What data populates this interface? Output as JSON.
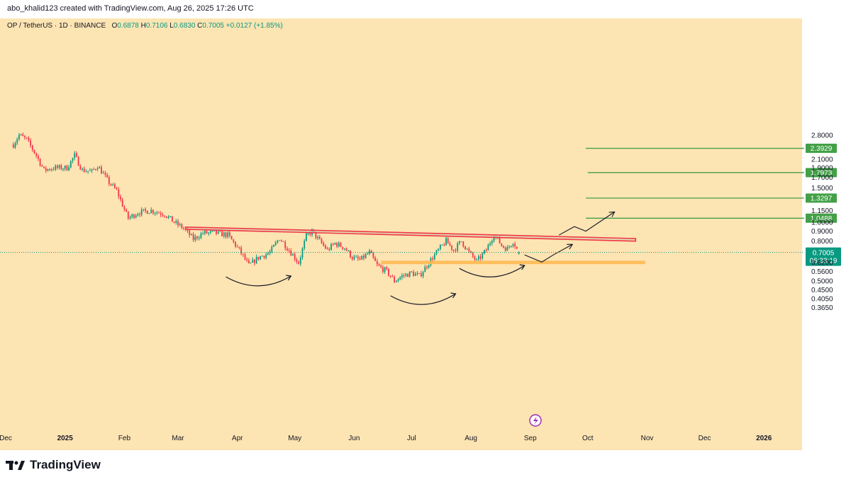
{
  "header": {
    "credit": "abo_khalid123 created with TradingView.com, Aug 26, 2025 17:26 UTC"
  },
  "legend": {
    "symbol": "OP / TetherUS · 1D · BINANCE",
    "open_label": "O",
    "open": "0.6878",
    "high_label": "H",
    "high": "0.7106",
    "low_label": "L",
    "low": "0.6830",
    "close_label": "C",
    "close": "0.7005",
    "change": "+0.0127 (+1.85%)"
  },
  "footer": {
    "brand": "TradingView"
  },
  "colors": {
    "plot_background": "#fde4b3",
    "up_candle": "#089981",
    "down_candle": "#f23645",
    "target_line": "#43a047",
    "resistance_channel": "#f23645",
    "support_zone": "#ffb74d",
    "current_price": "#089981"
  },
  "chart_data": {
    "type": "candlestick",
    "symbol": "OP / TetherUS",
    "timeframe": "1D",
    "exchange": "BINANCE",
    "y_scale": "log",
    "ylim": [
      0.33,
      3.0
    ],
    "y_ticks": [
      {
        "label": "2.8000",
        "value": 2.8
      },
      {
        "label": "2.1000",
        "value": 2.1
      },
      {
        "label": "1.9000",
        "value": 1.9
      },
      {
        "label": "1.7000",
        "value": 1.7
      },
      {
        "label": "1.5000",
        "value": 1.5
      },
      {
        "label": "1.1500",
        "value": 1.15
      },
      {
        "label": "1.0000",
        "value": 1.0
      },
      {
        "label": "0.9000",
        "value": 0.9
      },
      {
        "label": "0.8000",
        "value": 0.8
      },
      {
        "label": "0.6200",
        "value": 0.62
      },
      {
        "label": "0.5600",
        "value": 0.56
      },
      {
        "label": "0.5000",
        "value": 0.5
      },
      {
        "label": "0.4500",
        "value": 0.45
      },
      {
        "label": "0.4050",
        "value": 0.405
      },
      {
        "label": "0.3650",
        "value": 0.365
      }
    ],
    "x_ticks": [
      {
        "label": "Dec",
        "date": "2024-12-01"
      },
      {
        "label": "2025",
        "date": "2025-01-01"
      },
      {
        "label": "Feb",
        "date": "2025-02-01"
      },
      {
        "label": "Mar",
        "date": "2025-03-01"
      },
      {
        "label": "Apr",
        "date": "2025-04-01"
      },
      {
        "label": "May",
        "date": "2025-05-01"
      },
      {
        "label": "Jun",
        "date": "2025-06-01"
      },
      {
        "label": "Jul",
        "date": "2025-07-01"
      },
      {
        "label": "Aug",
        "date": "2025-08-01"
      },
      {
        "label": "Sep",
        "date": "2025-09-01"
      },
      {
        "label": "Oct",
        "date": "2025-10-01"
      },
      {
        "label": "Nov",
        "date": "2025-11-01"
      },
      {
        "label": "Dec",
        "date": "2025-12-01"
      },
      {
        "label": "2026",
        "date": "2026-01-01"
      }
    ],
    "last_candle": {
      "date": "2025-08-26",
      "open": 0.6878,
      "high": 0.7106,
      "low": 0.683,
      "close": 0.7005
    },
    "current_price": {
      "label": "0.7005",
      "value": 0.7005,
      "countdown": "06:33:19"
    },
    "price_path": [
      {
        "date": "2024-12-05",
        "close": 2.5
      },
      {
        "date": "2024-12-08",
        "close": 2.8
      },
      {
        "date": "2024-12-12",
        "close": 2.65
      },
      {
        "date": "2024-12-17",
        "close": 2.2
      },
      {
        "date": "2024-12-21",
        "close": 1.85
      },
      {
        "date": "2024-12-26",
        "close": 1.9
      },
      {
        "date": "2025-01-02",
        "close": 1.9
      },
      {
        "date": "2025-01-06",
        "close": 2.2
      },
      {
        "date": "2025-01-10",
        "close": 1.85
      },
      {
        "date": "2025-01-15",
        "close": 1.82
      },
      {
        "date": "2025-01-18",
        "close": 1.95
      },
      {
        "date": "2025-01-24",
        "close": 1.6
      },
      {
        "date": "2025-01-28",
        "close": 1.45
      },
      {
        "date": "2025-02-02",
        "close": 1.1
      },
      {
        "date": "2025-02-03",
        "close": 1.05
      },
      {
        "date": "2025-02-08",
        "close": 1.12
      },
      {
        "date": "2025-02-15",
        "close": 1.15
      },
      {
        "date": "2025-02-22",
        "close": 1.1
      },
      {
        "date": "2025-02-27",
        "close": 1.0
      },
      {
        "date": "2025-03-04",
        "close": 0.93
      },
      {
        "date": "2025-03-09",
        "close": 0.82
      },
      {
        "date": "2025-03-14",
        "close": 0.88
      },
      {
        "date": "2025-03-21",
        "close": 0.88
      },
      {
        "date": "2025-03-27",
        "close": 0.86
      },
      {
        "date": "2025-04-02",
        "close": 0.72
      },
      {
        "date": "2025-04-07",
        "close": 0.6
      },
      {
        "date": "2025-04-12",
        "close": 0.66
      },
      {
        "date": "2025-04-18",
        "close": 0.7
      },
      {
        "date": "2025-04-23",
        "close": 0.83
      },
      {
        "date": "2025-04-28",
        "close": 0.72
      },
      {
        "date": "2025-05-03",
        "close": 0.62
      },
      {
        "date": "2025-05-07",
        "close": 0.85
      },
      {
        "date": "2025-05-10",
        "close": 0.9
      },
      {
        "date": "2025-05-14",
        "close": 0.8
      },
      {
        "date": "2025-05-18",
        "close": 0.72
      },
      {
        "date": "2025-05-22",
        "close": 0.78
      },
      {
        "date": "2025-05-27",
        "close": 0.74
      },
      {
        "date": "2025-05-31",
        "close": 0.66
      },
      {
        "date": "2025-06-04",
        "close": 0.64
      },
      {
        "date": "2025-06-09",
        "close": 0.7
      },
      {
        "date": "2025-06-13",
        "close": 0.6
      },
      {
        "date": "2025-06-18",
        "close": 0.56
      },
      {
        "date": "2025-06-22",
        "close": 0.5
      },
      {
        "date": "2025-06-26",
        "close": 0.53
      },
      {
        "date": "2025-07-01",
        "close": 0.55
      },
      {
        "date": "2025-07-05",
        "close": 0.53
      },
      {
        "date": "2025-07-10",
        "close": 0.62
      },
      {
        "date": "2025-07-14",
        "close": 0.7
      },
      {
        "date": "2025-07-19",
        "close": 0.8
      },
      {
        "date": "2025-07-23",
        "close": 0.72
      },
      {
        "date": "2025-07-27",
        "close": 0.8
      },
      {
        "date": "2025-07-31",
        "close": 0.7
      },
      {
        "date": "2025-08-04",
        "close": 0.63
      },
      {
        "date": "2025-08-09",
        "close": 0.72
      },
      {
        "date": "2025-08-13",
        "close": 0.87
      },
      {
        "date": "2025-08-17",
        "close": 0.76
      },
      {
        "date": "2025-08-20",
        "close": 0.73
      },
      {
        "date": "2025-08-23",
        "close": 0.8
      },
      {
        "date": "2025-08-26",
        "close": 0.7005
      }
    ],
    "targets": [
      {
        "label": "2.3929",
        "value": 2.3929,
        "start": "2025-09-30"
      },
      {
        "label": "1.7973",
        "value": 1.7973,
        "start": "2025-10-01"
      },
      {
        "label": "1.3297",
        "value": 1.3297,
        "start": "2025-09-30"
      },
      {
        "label": "1.0488",
        "value": 1.0488,
        "start": "2025-09-30"
      }
    ],
    "resistance_channel": {
      "start_date": "2025-03-05",
      "end_date": "2025-10-26",
      "upper_start": 0.945,
      "upper_end": 0.825,
      "lower_start": 0.92,
      "lower_end": 0.8
    },
    "support_zone": {
      "start_date": "2025-06-15",
      "end_date": "2025-10-31",
      "top": 0.635,
      "bottom": 0.61
    },
    "annotations": {
      "rounding_arcs": [
        {
          "start": "2025-03-26",
          "end": "2025-04-29",
          "from": 0.525,
          "to": 0.53
        },
        {
          "start": "2025-06-20",
          "end": "2025-07-24",
          "from": 0.42,
          "to": 0.43
        },
        {
          "start": "2025-07-26",
          "end": "2025-08-29",
          "from": 0.58,
          "to": 0.6
        }
      ],
      "projection_paths": [
        [
          {
            "date": "2025-08-29",
            "value": 0.68
          },
          {
            "date": "2025-09-07",
            "value": 0.625
          },
          {
            "date": "2025-09-13",
            "value": 0.68
          },
          {
            "date": "2025-09-23",
            "value": 0.77
          }
        ],
        [
          {
            "date": "2025-09-16",
            "value": 0.86
          },
          {
            "date": "2025-09-24",
            "value": 0.95
          },
          {
            "date": "2025-09-30",
            "value": 0.9
          },
          {
            "date": "2025-10-15",
            "value": 1.13
          }
        ]
      ]
    }
  }
}
